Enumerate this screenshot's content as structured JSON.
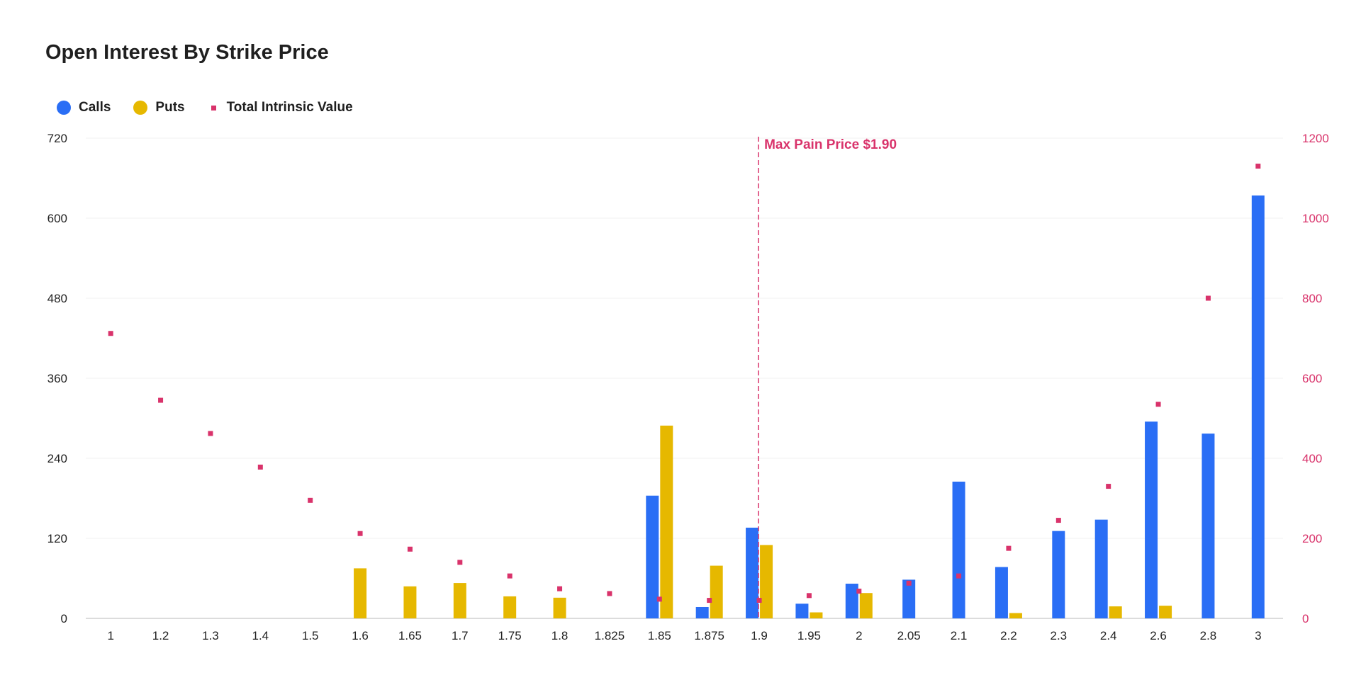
{
  "chart_data": {
    "type": "bar",
    "title": "Open Interest By Strike Price",
    "categories": [
      "1",
      "1.2",
      "1.3",
      "1.4",
      "1.5",
      "1.6",
      "1.65",
      "1.7",
      "1.75",
      "1.8",
      "1.825",
      "1.85",
      "1.875",
      "1.9",
      "1.95",
      "2",
      "2.05",
      "2.1",
      "2.2",
      "2.3",
      "2.4",
      "2.6",
      "2.8",
      "3"
    ],
    "series": [
      {
        "name": "Calls",
        "color": "#2a6ef5",
        "axis": "left",
        "values": [
          0,
          0,
          0,
          0,
          0,
          0,
          0,
          0,
          0,
          0,
          0,
          184,
          17,
          136,
          22,
          52,
          58,
          205,
          77,
          131,
          148,
          295,
          277,
          634
        ]
      },
      {
        "name": "Puts",
        "color": "#e6b800",
        "axis": "left",
        "values": [
          0,
          0,
          0,
          0,
          0,
          75,
          48,
          53,
          33,
          31,
          0,
          289,
          79,
          110,
          9,
          38,
          0,
          0,
          8,
          0,
          18,
          19,
          0,
          0
        ]
      },
      {
        "name": "Total Intrinsic Value",
        "color": "#d9336b",
        "axis": "right",
        "marker": "square",
        "values": [
          712,
          545,
          462,
          378,
          295,
          212,
          173,
          140,
          106,
          74,
          62,
          48,
          45,
          45,
          57,
          68,
          88,
          106,
          175,
          245,
          330,
          535,
          800,
          1130
        ]
      }
    ],
    "y_left": {
      "ticks": [
        0,
        120,
        240,
        360,
        480,
        600,
        720
      ],
      "ylim": [
        0,
        720
      ]
    },
    "y_right": {
      "ticks": [
        0,
        200,
        400,
        600,
        800,
        1000,
        1200
      ],
      "ylim": [
        0,
        1200
      ],
      "color": "#d9336b"
    },
    "annotation": {
      "label": "Max Pain Price $1.90",
      "category": "1.9",
      "color": "#d9336b"
    },
    "grid": true,
    "legend_position": "top-left"
  }
}
